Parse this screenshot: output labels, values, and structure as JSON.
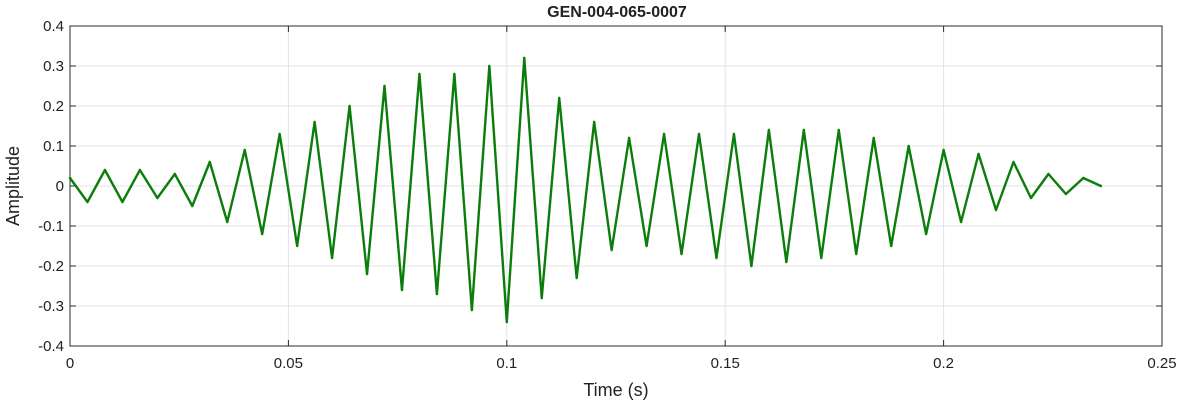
{
  "chart_data": {
    "type": "line",
    "title": "GEN-004-065-0007",
    "xlabel": "Time (s)",
    "ylabel": "Amplitude",
    "xlim": [
      0,
      0.25
    ],
    "ylim": [
      -0.4,
      0.4
    ],
    "x_ticks": [
      0,
      0.05,
      0.1,
      0.15,
      0.2,
      0.25
    ],
    "x_tick_labels": [
      "0",
      "0.05",
      "0.1",
      "0.15",
      "0.2",
      "0.25"
    ],
    "y_ticks": [
      -0.4,
      -0.3,
      -0.2,
      -0.1,
      0,
      0.1,
      0.2,
      0.3,
      0.4
    ],
    "y_tick_labels": [
      "-0.4",
      "-0.3",
      "-0.2",
      "-0.1",
      "0",
      "0.1",
      "0.2",
      "0.3",
      "0.4"
    ],
    "grid": true,
    "series": [
      {
        "color": "#0b7d0b",
        "x": [
          0,
          0.004,
          0.008,
          0.012,
          0.016,
          0.02,
          0.024,
          0.028,
          0.032,
          0.036,
          0.04,
          0.044,
          0.048,
          0.052,
          0.056,
          0.06,
          0.064,
          0.068,
          0.072,
          0.076,
          0.08,
          0.084,
          0.088,
          0.092,
          0.096,
          0.1,
          0.104,
          0.108,
          0.112,
          0.116,
          0.12,
          0.124,
          0.128,
          0.132,
          0.136,
          0.14,
          0.144,
          0.148,
          0.152,
          0.156,
          0.16,
          0.164,
          0.168,
          0.172,
          0.176,
          0.18,
          0.184,
          0.188,
          0.192,
          0.196,
          0.2,
          0.204,
          0.208,
          0.212,
          0.216,
          0.22,
          0.224,
          0.228,
          0.232,
          0.236
        ],
        "y": [
          0.02,
          -0.04,
          0.04,
          -0.04,
          0.04,
          -0.03,
          0.03,
          -0.05,
          0.06,
          -0.09,
          0.09,
          -0.12,
          0.13,
          -0.15,
          0.16,
          -0.18,
          0.2,
          -0.22,
          0.25,
          -0.26,
          0.28,
          -0.27,
          0.28,
          -0.31,
          0.3,
          -0.34,
          0.32,
          -0.28,
          0.22,
          -0.23,
          0.16,
          -0.16,
          0.12,
          -0.15,
          0.13,
          -0.17,
          0.13,
          -0.18,
          0.13,
          -0.2,
          0.14,
          -0.19,
          0.14,
          -0.18,
          0.14,
          -0.17,
          0.12,
          -0.15,
          0.1,
          -0.12,
          0.09,
          -0.09,
          0.08,
          -0.06,
          0.06,
          -0.03,
          0.03,
          -0.02,
          0.02,
          0.0
        ]
      }
    ]
  }
}
